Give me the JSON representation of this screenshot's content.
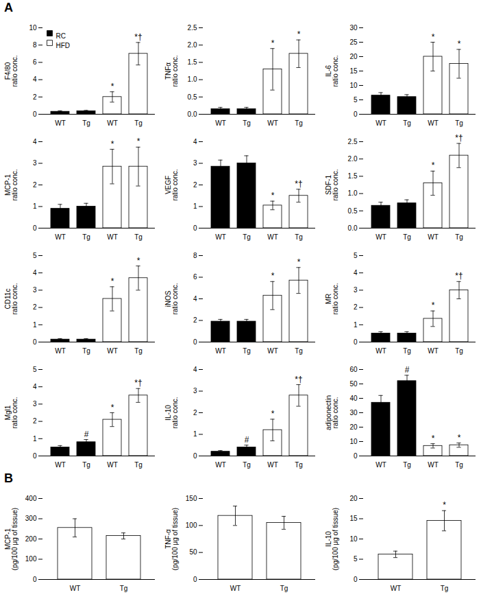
{
  "chart_data": [
    {
      "panel": "A",
      "type": "bar",
      "ylabel": "F4/80\nratio conc.",
      "categories": [
        "WT",
        "Tg",
        "WT",
        "Tg"
      ],
      "series": [
        {
          "name": "RC",
          "color": "black",
          "values": [
            0.3,
            0.35,
            null,
            null
          ],
          "errors": [
            0.1,
            0.1,
            null,
            null
          ]
        },
        {
          "name": "HFD",
          "color": "white",
          "values": [
            null,
            null,
            2.0,
            7.0
          ],
          "errors": [
            null,
            null,
            0.6,
            1.3
          ]
        }
      ],
      "ylim": [
        0,
        10
      ],
      "yticks": [
        0,
        2,
        4,
        6,
        8,
        10
      ],
      "annotations": [
        {
          "index": 2,
          "text": "*"
        },
        {
          "index": 3,
          "text": "*†"
        }
      ],
      "legend": "upper left",
      "grid": false
    },
    {
      "panel": "A",
      "type": "bar",
      "ylabel": "TNFα\nratio conc.",
      "categories": [
        "WT",
        "Tg",
        "WT",
        "Tg"
      ],
      "series": [
        {
          "name": "RC",
          "color": "black",
          "values": [
            0.15,
            0.15,
            null,
            null
          ],
          "errors": [
            0.05,
            0.05,
            null,
            null
          ]
        },
        {
          "name": "HFD",
          "color": "white",
          "values": [
            null,
            null,
            1.3,
            1.75
          ],
          "errors": [
            null,
            null,
            0.6,
            0.4
          ]
        }
      ],
      "ylim": [
        0,
        2.5
      ],
      "yticks": [
        {
          "value": 0,
          "label": "0.0"
        },
        0.5,
        {
          "value": 1.0,
          "label": "1.0"
        },
        1.5,
        {
          "value": 2.0,
          "label": "2.0"
        },
        2.5
      ],
      "annotations": [
        {
          "index": 2,
          "text": "*"
        },
        {
          "index": 3,
          "text": "*"
        }
      ],
      "legend": false,
      "grid": false
    },
    {
      "panel": "A",
      "type": "bar",
      "ylabel": "IL-6\nratio conc.",
      "categories": [
        "WT",
        "Tg",
        "WT",
        "Tg"
      ],
      "series": [
        {
          "name": "RC",
          "color": "black",
          "values": [
            6.5,
            6.0,
            null,
            null
          ],
          "errors": [
            1.0,
            0.8,
            null,
            null
          ]
        },
        {
          "name": "HFD",
          "color": "white",
          "values": [
            null,
            null,
            20.0,
            17.5
          ],
          "errors": [
            null,
            null,
            5.0,
            5.0
          ]
        }
      ],
      "ylim": [
        0,
        30
      ],
      "yticks": [
        0,
        5,
        10,
        15,
        20,
        25,
        30
      ],
      "annotations": [
        {
          "index": 2,
          "text": "*"
        },
        {
          "index": 3,
          "text": "*"
        }
      ],
      "legend": false,
      "grid": false
    },
    {
      "panel": "A",
      "type": "bar",
      "ylabel": "MCP-1\nratio conc.",
      "categories": [
        "WT",
        "Tg",
        "WT",
        "Tg"
      ],
      "series": [
        {
          "name": "RC",
          "color": "black",
          "values": [
            0.9,
            1.0,
            null,
            null
          ],
          "errors": [
            0.2,
            0.15,
            null,
            null
          ]
        },
        {
          "name": "HFD",
          "color": "white",
          "values": [
            null,
            null,
            2.85,
            2.85
          ],
          "errors": [
            null,
            null,
            0.8,
            0.9
          ]
        }
      ],
      "ylim": [
        0,
        4
      ],
      "yticks": [
        0,
        1,
        2,
        3,
        4
      ],
      "annotations": [
        {
          "index": 2,
          "text": "*"
        },
        {
          "index": 3,
          "text": "*"
        }
      ],
      "legend": false,
      "grid": false
    },
    {
      "panel": "A",
      "type": "bar",
      "ylabel": "VEGF\nratio conc.",
      "categories": [
        "WT",
        "Tg",
        "WT",
        "Tg"
      ],
      "series": [
        {
          "name": "RC",
          "color": "black",
          "values": [
            2.85,
            3.0,
            null,
            null
          ],
          "errors": [
            0.3,
            0.35,
            null,
            null
          ]
        },
        {
          "name": "HFD",
          "color": "white",
          "values": [
            null,
            null,
            1.05,
            1.5
          ],
          "errors": [
            null,
            null,
            0.2,
            0.3
          ]
        }
      ],
      "ylim": [
        0,
        4
      ],
      "yticks": [
        0,
        1,
        2,
        3,
        4
      ],
      "annotations": [
        {
          "index": 2,
          "text": "*"
        },
        {
          "index": 3,
          "text": "*†"
        }
      ],
      "legend": false,
      "grid": false
    },
    {
      "panel": "A",
      "type": "bar",
      "ylabel": "SDF-1\nratio conc.",
      "categories": [
        "WT",
        "Tg",
        "WT",
        "Tg"
      ],
      "series": [
        {
          "name": "RC",
          "color": "black",
          "values": [
            0.65,
            0.72,
            null,
            null
          ],
          "errors": [
            0.1,
            0.1,
            null,
            null
          ]
        },
        {
          "name": "HFD",
          "color": "white",
          "values": [
            null,
            null,
            1.3,
            2.1
          ],
          "errors": [
            null,
            null,
            0.35,
            0.35
          ]
        }
      ],
      "ylim": [
        0,
        2.5
      ],
      "yticks": [
        {
          "value": 0,
          "label": "0.0"
        },
        0.5,
        {
          "value": 1.0,
          "label": "1.0"
        },
        1.5,
        {
          "value": 2.0,
          "label": "2.0"
        },
        2.5
      ],
      "annotations": [
        {
          "index": 2,
          "text": "*"
        },
        {
          "index": 3,
          "text": "*†"
        }
      ],
      "legend": false,
      "grid": false
    },
    {
      "panel": "A",
      "type": "bar",
      "ylabel": "CD11c\nratio conc.",
      "categories": [
        "WT",
        "Tg",
        "WT",
        "Tg"
      ],
      "series": [
        {
          "name": "RC",
          "color": "black",
          "values": [
            0.15,
            0.15,
            null,
            null
          ],
          "errors": [
            0.05,
            0.05,
            null,
            null
          ]
        },
        {
          "name": "HFD",
          "color": "white",
          "values": [
            null,
            null,
            2.5,
            3.7
          ],
          "errors": [
            null,
            null,
            0.7,
            0.7
          ]
        }
      ],
      "ylim": [
        0,
        5
      ],
      "yticks": [
        0,
        1,
        2,
        3,
        4,
        5
      ],
      "annotations": [
        {
          "index": 2,
          "text": "*"
        },
        {
          "index": 3,
          "text": "*"
        }
      ],
      "legend": false,
      "grid": false
    },
    {
      "panel": "A",
      "type": "bar",
      "ylabel": "iNOS\nratio conc.",
      "categories": [
        "WT",
        "Tg",
        "WT",
        "Tg"
      ],
      "series": [
        {
          "name": "RC",
          "color": "black",
          "values": [
            1.9,
            1.9,
            null,
            null
          ],
          "errors": [
            0.2,
            0.2,
            null,
            null
          ]
        },
        {
          "name": "HFD",
          "color": "white",
          "values": [
            null,
            null,
            4.3,
            5.7
          ],
          "errors": [
            null,
            null,
            1.3,
            1.2
          ]
        }
      ],
      "ylim": [
        0,
        8
      ],
      "yticks": [
        0,
        2,
        4,
        6,
        8
      ],
      "annotations": [
        {
          "index": 2,
          "text": "*"
        },
        {
          "index": 3,
          "text": "*"
        }
      ],
      "legend": false,
      "grid": false
    },
    {
      "panel": "A",
      "type": "bar",
      "ylabel": "MR\nratio conc.",
      "categories": [
        "WT",
        "Tg",
        "WT",
        "Tg"
      ],
      "series": [
        {
          "name": "RC",
          "color": "black",
          "values": [
            0.5,
            0.5,
            null,
            null
          ],
          "errors": [
            0.1,
            0.1,
            null,
            null
          ]
        },
        {
          "name": "HFD",
          "color": "white",
          "values": [
            null,
            null,
            1.35,
            3.0
          ],
          "errors": [
            null,
            null,
            0.45,
            0.5
          ]
        }
      ],
      "ylim": [
        0,
        5
      ],
      "yticks": [
        0,
        1,
        2,
        3,
        4,
        5
      ],
      "annotations": [
        {
          "index": 2,
          "text": "*"
        },
        {
          "index": 3,
          "text": "*†"
        }
      ],
      "legend": false,
      "grid": false
    },
    {
      "panel": "A",
      "type": "bar",
      "ylabel": "Mgl1\nratio conc.",
      "categories": [
        "WT",
        "Tg",
        "WT",
        "Tg"
      ],
      "series": [
        {
          "name": "RC",
          "color": "black",
          "values": [
            0.5,
            0.8,
            null,
            null
          ],
          "errors": [
            0.1,
            0.15,
            null,
            null
          ]
        },
        {
          "name": "HFD",
          "color": "white",
          "values": [
            null,
            null,
            2.1,
            3.5
          ],
          "errors": [
            null,
            null,
            0.4,
            0.4
          ]
        }
      ],
      "ylim": [
        0,
        5
      ],
      "yticks": [
        0,
        1,
        2,
        3,
        4,
        5
      ],
      "annotations": [
        {
          "index": 1,
          "text": "#"
        },
        {
          "index": 2,
          "text": "*"
        },
        {
          "index": 3,
          "text": "*†"
        }
      ],
      "legend": false,
      "grid": false
    },
    {
      "panel": "A",
      "type": "bar",
      "ylabel": "IL-10\nratio conc.",
      "categories": [
        "WT",
        "Tg",
        "WT",
        "Tg"
      ],
      "series": [
        {
          "name": "RC",
          "color": "black",
          "values": [
            0.2,
            0.4,
            null,
            null
          ],
          "errors": [
            0.05,
            0.1,
            null,
            null
          ]
        },
        {
          "name": "HFD",
          "color": "white",
          "values": [
            null,
            null,
            1.2,
            2.8
          ],
          "errors": [
            null,
            null,
            0.5,
            0.5
          ]
        }
      ],
      "ylim": [
        0,
        4
      ],
      "yticks": [
        0,
        1,
        2,
        3,
        4
      ],
      "annotations": [
        {
          "index": 1,
          "text": "#"
        },
        {
          "index": 2,
          "text": "*"
        },
        {
          "index": 3,
          "text": "*†"
        }
      ],
      "legend": false,
      "grid": false
    },
    {
      "panel": "A",
      "type": "bar",
      "ylabel": "adiponectin\nratio conc.",
      "categories": [
        "WT",
        "Tg",
        "WT",
        "Tg"
      ],
      "series": [
        {
          "name": "RC",
          "color": "black",
          "values": [
            37.0,
            52.0,
            null,
            null
          ],
          "errors": [
            5.0,
            4.0,
            null,
            null
          ]
        },
        {
          "name": "HFD",
          "color": "white",
          "values": [
            null,
            null,
            7.0,
            7.5
          ],
          "errors": [
            null,
            null,
            1.5,
            1.5
          ]
        }
      ],
      "ylim": [
        0,
        60
      ],
      "yticks": [
        0,
        10,
        20,
        30,
        40,
        50,
        60
      ],
      "annotations": [
        {
          "index": 1,
          "text": "#"
        },
        {
          "index": 2,
          "text": "*"
        },
        {
          "index": 3,
          "text": "*"
        }
      ],
      "legend": false,
      "grid": false
    },
    {
      "panel": "B",
      "type": "bar",
      "ylabel": "MCP-1\n(pg/100 μg of tissue)",
      "categories": [
        "WT",
        "Tg"
      ],
      "values": [
        255,
        215
      ],
      "errors": [
        45,
        15
      ],
      "color": "white",
      "ylim": [
        0,
        400
      ],
      "yticks": [
        0,
        100,
        200,
        300,
        400
      ],
      "legend": false,
      "grid": false
    },
    {
      "panel": "B",
      "type": "bar",
      "ylabel": "TNF-α\n(pg/100 μg of tissue)",
      "categories": [
        "WT",
        "Tg"
      ],
      "values": [
        118,
        105
      ],
      "errors": [
        18,
        12
      ],
      "color": "white",
      "ylim": [
        0,
        150
      ],
      "yticks": [
        0,
        50,
        100,
        150
      ],
      "legend": false,
      "grid": false
    },
    {
      "panel": "B",
      "type": "bar",
      "ylabel": "IL-10\n(pg/100 μg of tissue)",
      "categories": [
        "WT",
        "Tg"
      ],
      "values": [
        6.2,
        14.5
      ],
      "errors": [
        0.8,
        2.5
      ],
      "color": "white",
      "ylim": [
        0,
        20
      ],
      "yticks": [
        0,
        5,
        10,
        15,
        20
      ],
      "annotations": [
        {
          "index": 1,
          "text": "*"
        }
      ],
      "legend": false,
      "grid": false
    }
  ]
}
